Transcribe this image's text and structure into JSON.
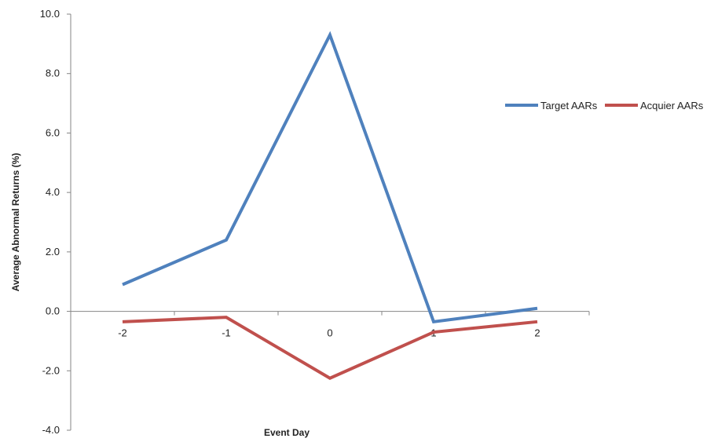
{
  "chart_data": {
    "type": "line",
    "title": "",
    "xlabel": "Event Day",
    "ylabel": "Average Abnormal Returns  (%)",
    "categories": [
      "-2",
      "-1",
      "0",
      "1",
      "2"
    ],
    "ylim": [
      -4.0,
      10.0
    ],
    "yticks": [
      "-4.0",
      "-2.0",
      "0.0",
      "2.0",
      "4.0",
      "6.0",
      "8.0",
      "10.0"
    ],
    "grid": false,
    "legend_position": "right",
    "series": [
      {
        "name": "Target AARs",
        "color": "#4f81bd",
        "values": [
          0.9,
          2.4,
          9.3,
          -0.35,
          0.1
        ]
      },
      {
        "name": "Acquier AARs",
        "color": "#c0504d",
        "values": [
          -0.35,
          -0.2,
          -2.25,
          -0.7,
          -0.35
        ]
      }
    ]
  }
}
